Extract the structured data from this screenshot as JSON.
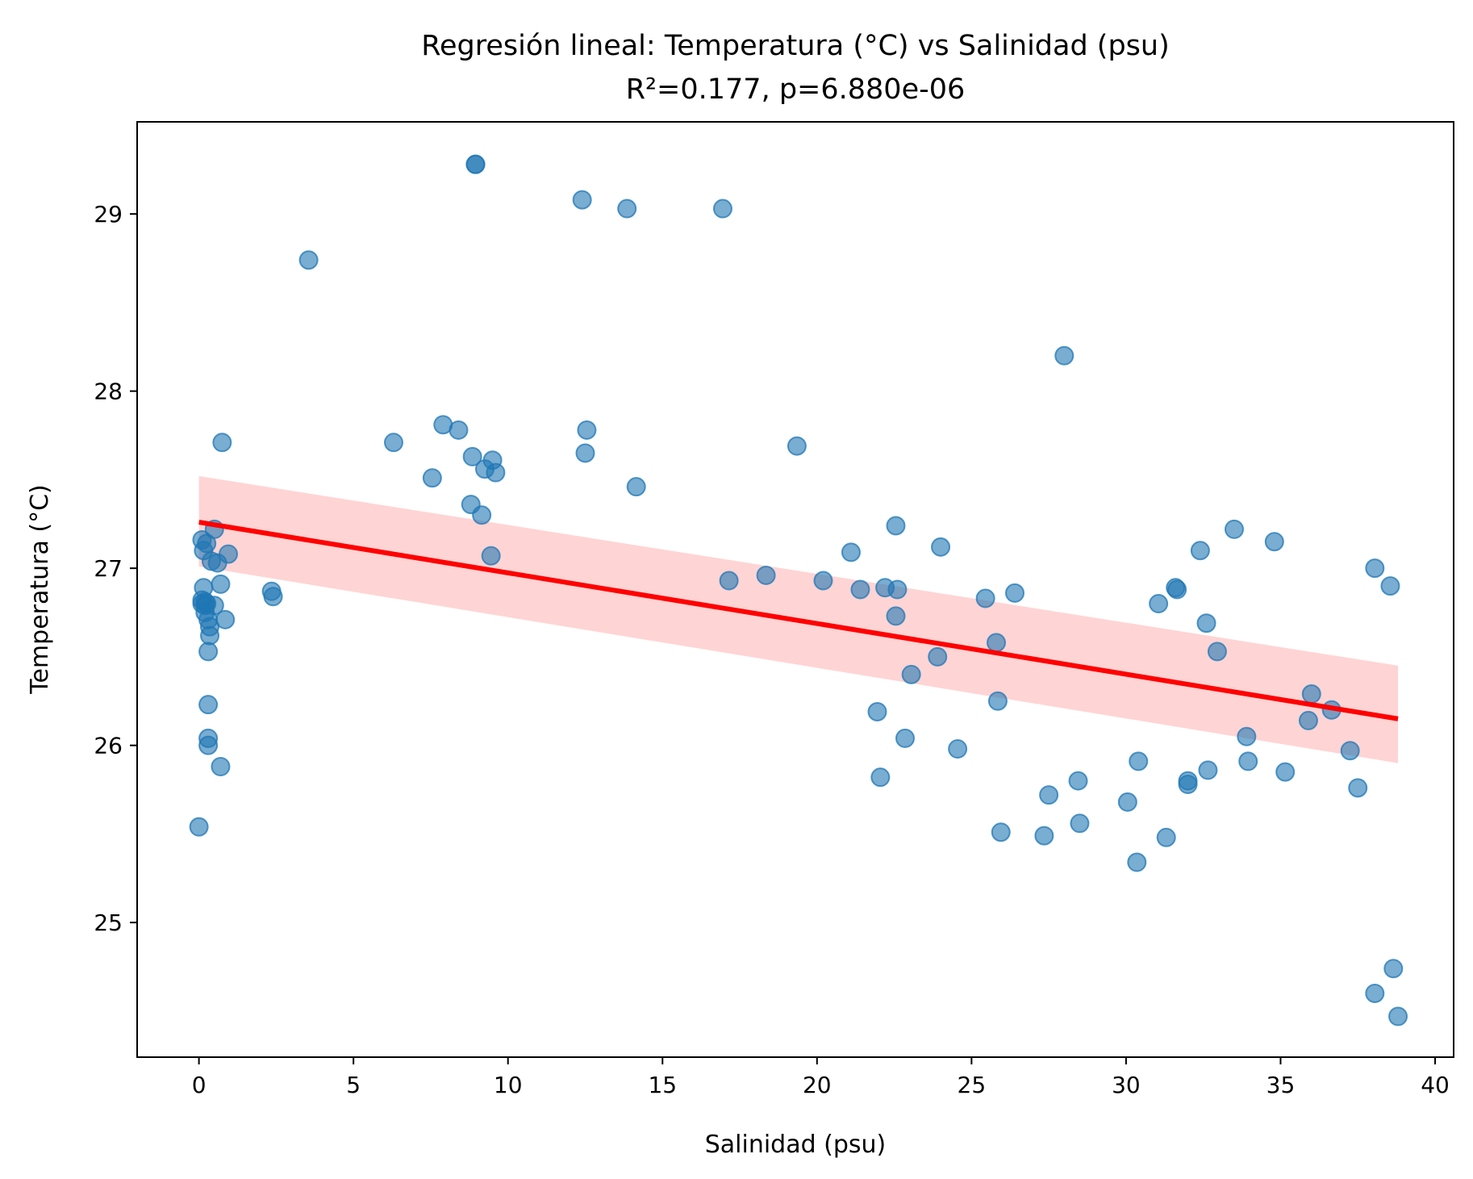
{
  "chart_data": {
    "type": "scatter",
    "title": "Regresión lineal: Temperatura (°C) vs Salinidad (psu)",
    "subtitle": "R²=0.177, p=6.880e-06",
    "xlabel": "Salinidad (psu)",
    "ylabel": "Temperatura (°C)",
    "xlim": [
      -2,
      40.6
    ],
    "ylim": [
      24.24,
      29.52
    ],
    "xticks": [
      0,
      5,
      10,
      15,
      20,
      25,
      30,
      35,
      40
    ],
    "yticks": [
      25,
      26,
      27,
      28,
      29
    ],
    "grid": false,
    "colors": {
      "points": "#1f77b4",
      "fit_line": "#ff0000",
      "band": "#ffcccc"
    },
    "series": [
      {
        "type": "scatter",
        "x": [
          0.0,
          0.1,
          0.1,
          0.1,
          0.15,
          0.15,
          0.2,
          0.2,
          0.2,
          0.25,
          0.25,
          0.3,
          0.3,
          0.3,
          0.3,
          0.3,
          0.35,
          0.35,
          0.4,
          0.5,
          0.5,
          0.6,
          0.7,
          0.7,
          0.75,
          0.85,
          0.95,
          2.35,
          2.4,
          3.55,
          6.3,
          7.55,
          7.9,
          8.4,
          8.8,
          8.85,
          9.15,
          9.25,
          9.45,
          9.5,
          9.6,
          8.95,
          8.95,
          12.4,
          12.5,
          12.55,
          13.85,
          14.15,
          16.95,
          17.15,
          18.35,
          19.35,
          20.2,
          21.1,
          21.4,
          21.95,
          22.05,
          22.2,
          22.55,
          22.6,
          22.55,
          22.85,
          23.05,
          23.9,
          24.0,
          24.55,
          25.45,
          25.8,
          25.85,
          25.95,
          26.4,
          27.35,
          27.5,
          28.0,
          28.45,
          28.5,
          30.05,
          30.35,
          30.4,
          31.05,
          31.3,
          31.65,
          31.6,
          32.0,
          32.0,
          32.4,
          32.6,
          32.65,
          32.95,
          33.5,
          33.9,
          33.95,
          34.8,
          35.15,
          35.9,
          36.0,
          36.65,
          37.25,
          37.5,
          38.05,
          38.05,
          38.55,
          38.65,
          38.8
        ],
        "y": [
          25.54,
          27.16,
          26.8,
          26.82,
          27.1,
          26.89,
          26.79,
          26.75,
          26.81,
          26.8,
          27.14,
          26.53,
          26.23,
          26.04,
          26.0,
          26.71,
          26.62,
          26.67,
          27.04,
          26.79,
          27.22,
          27.03,
          26.91,
          25.88,
          27.71,
          26.71,
          27.08,
          26.87,
          26.84,
          28.74,
          27.71,
          27.51,
          27.81,
          27.78,
          27.36,
          27.63,
          27.3,
          27.56,
          27.07,
          27.61,
          27.54,
          29.28,
          29.28,
          29.08,
          27.65,
          27.78,
          29.03,
          27.46,
          29.03,
          26.93,
          26.96,
          27.69,
          26.93,
          27.09,
          26.88,
          26.19,
          25.82,
          26.89,
          26.73,
          26.88,
          27.24,
          26.04,
          26.4,
          26.5,
          27.12,
          25.98,
          26.83,
          26.58,
          26.25,
          25.51,
          26.86,
          25.49,
          25.72,
          28.2,
          25.8,
          25.56,
          25.68,
          25.34,
          25.91,
          26.8,
          25.48,
          26.88,
          26.89,
          25.8,
          25.78,
          27.1,
          26.69,
          25.86,
          26.53,
          27.22,
          26.05,
          25.91,
          27.15,
          25.85,
          26.14,
          26.29,
          26.2,
          25.97,
          25.76,
          24.6,
          27.0,
          26.9,
          24.74,
          24.47
        ]
      }
    ],
    "regression": {
      "x": [
        0.0,
        38.8
      ],
      "y": [
        27.26,
        26.15
      ],
      "ci_lower": [
        27.01,
        25.9
      ],
      "ci_upper": [
        27.52,
        26.45
      ]
    }
  }
}
